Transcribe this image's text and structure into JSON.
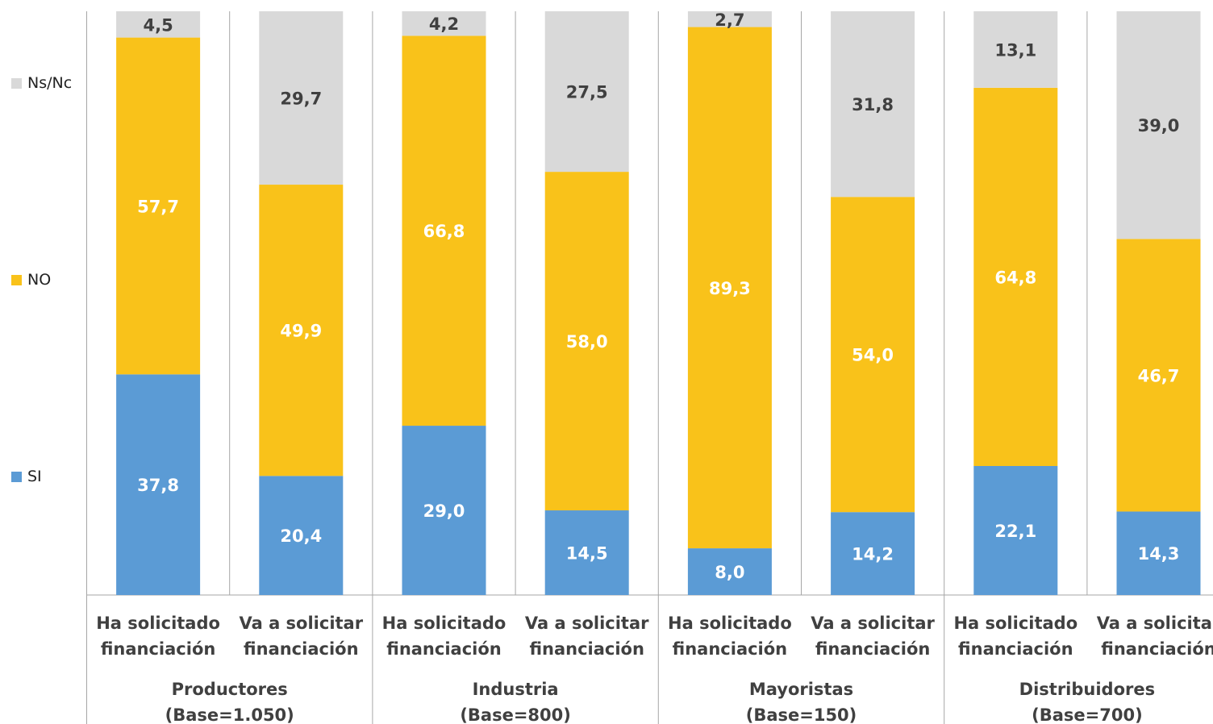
{
  "chart_data": {
    "type": "bar",
    "stacked": true,
    "percent_stacked": true,
    "ylim": [
      0,
      100
    ],
    "grid": false,
    "legend_position": "left",
    "legend": [
      {
        "key": "ns",
        "name": "Ns/Nc"
      },
      {
        "key": "no",
        "name": "NO"
      },
      {
        "key": "si",
        "name": "SI"
      }
    ],
    "categories": [
      "Ha solicitado financiación",
      "Va a solicitar financiación",
      "Ha solicitado financiación",
      "Va a solicitar financiación",
      "Ha solicitado financiación",
      "Va a solicitar financiación",
      "Ha solicitado financiación",
      "Va a solicitar financiación"
    ],
    "category_lines": [
      [
        "Ha solicitado",
        "financiación"
      ],
      [
        "Va a solicitar",
        "financiación"
      ],
      [
        "Ha solicitado",
        "financiación"
      ],
      [
        "Va a solicitar",
        "financiación"
      ],
      [
        "Ha solicitado",
        "financiación"
      ],
      [
        "Va a solicitar",
        "financiación"
      ],
      [
        "Ha solicitado",
        "financiación"
      ],
      [
        "Va a solicitar",
        "financiación"
      ]
    ],
    "groups": [
      {
        "name": "Productores",
        "base": "(Base=1.050)"
      },
      {
        "name": "Industria",
        "base": "(Base=800)"
      },
      {
        "name": "Mayoristas",
        "base": "(Base=150)"
      },
      {
        "name": "Distribuidores",
        "base": "(Base=700)"
      }
    ],
    "series": [
      {
        "key": "si",
        "name": "SI",
        "color": "#5b9bd5",
        "values": [
          37.8,
          20.4,
          29.0,
          14.5,
          8.0,
          14.2,
          22.1,
          14.3
        ],
        "labels": [
          "37,8",
          "20,4",
          "29,0",
          "14,5",
          "8,0",
          "14,2",
          "22,1",
          "14,3"
        ]
      },
      {
        "key": "no",
        "name": "NO",
        "color": "#f9c21a",
        "values": [
          57.7,
          49.9,
          66.8,
          58.0,
          89.3,
          54.0,
          64.8,
          46.7
        ],
        "labels": [
          "57,7",
          "49,9",
          "66,8",
          "58,0",
          "89,3",
          "54,0",
          "64,8",
          "46,7"
        ]
      },
      {
        "key": "ns",
        "name": "Ns/Nc",
        "color": "#d9d9d9",
        "values": [
          4.5,
          29.7,
          4.2,
          27.5,
          2.7,
          31.8,
          13.1,
          39.0
        ],
        "labels": [
          "4,5",
          "29,7",
          "4,2",
          "27,5",
          "2,7",
          "31,8",
          "13,1",
          "39,0"
        ]
      }
    ]
  }
}
